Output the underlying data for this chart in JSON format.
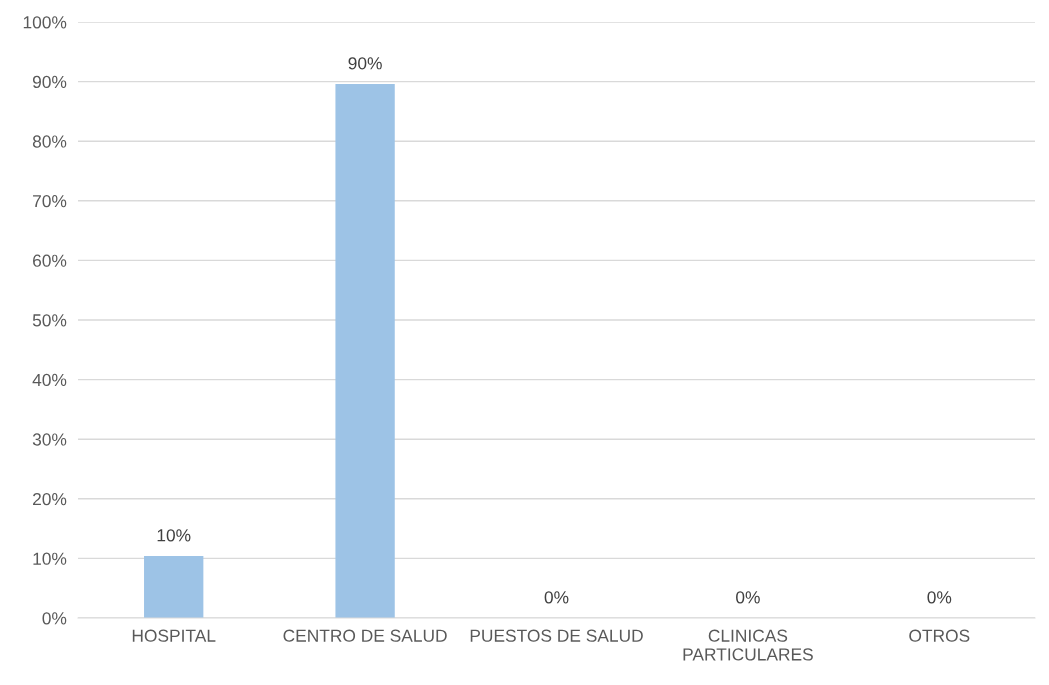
{
  "chart_data": {
    "type": "bar",
    "categories": [
      "HOSPITAL",
      "CENTRO DE SALUD",
      "PUESTOS DE SALUD",
      "CLINICAS\nPARTICULARES",
      "OTROS"
    ],
    "values": [
      10.4,
      89.6,
      0,
      0,
      0
    ],
    "value_labels": [
      "10%",
      "90%",
      "0%",
      "0%",
      "0%"
    ],
    "color": "#9dc3e6",
    "ylim": [
      0,
      100
    ],
    "yticks": [
      {
        "value": 0,
        "label": "0%"
      },
      {
        "value": 10,
        "label": "10%"
      },
      {
        "value": 20,
        "label": "20%"
      },
      {
        "value": 30,
        "label": "30%"
      },
      {
        "value": 40,
        "label": "40%"
      },
      {
        "value": 50,
        "label": "50%"
      },
      {
        "value": 60,
        "label": "60%"
      },
      {
        "value": 70,
        "label": "70%"
      },
      {
        "value": 80,
        "label": "80%"
      },
      {
        "value": 90,
        "label": "90%"
      },
      {
        "value": 100,
        "label": "100%"
      }
    ],
    "grid": "y"
  }
}
